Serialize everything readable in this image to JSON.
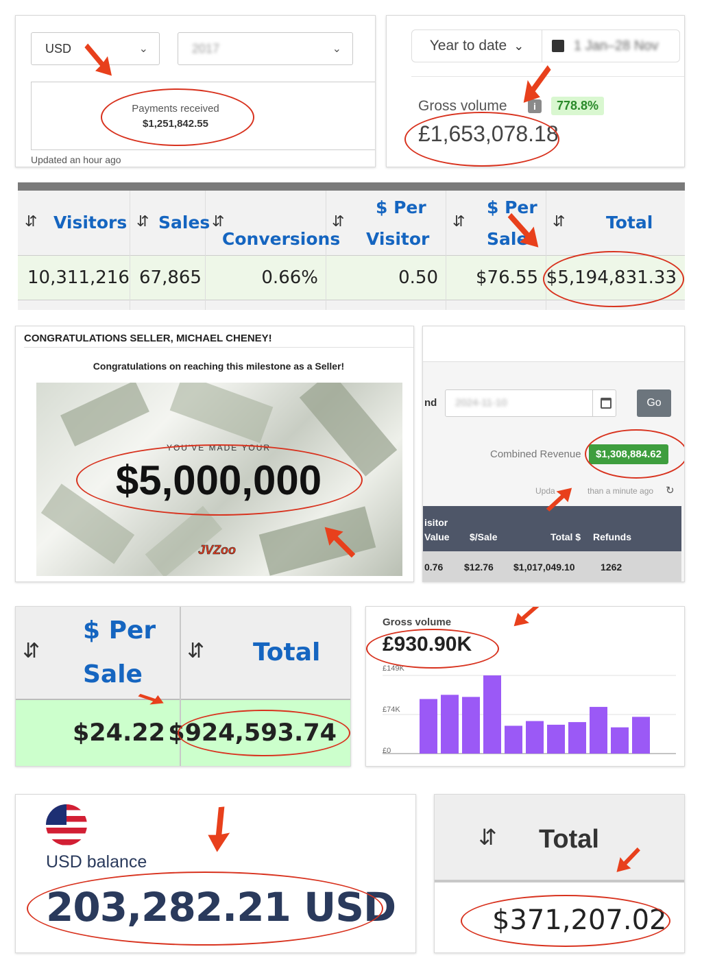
{
  "p1": {
    "currency": "USD",
    "year": "2017",
    "label": "Payments received",
    "amount": "$1,251,842.55",
    "updated": "Updated an hour ago"
  },
  "p2": {
    "period": "Year to date",
    "date_range": "1 Jan–28 Nov",
    "label": "Gross volume",
    "badge": "778.8%",
    "amount": "£1,653,078.18"
  },
  "p3": {
    "headers": [
      "Visitors",
      "Sales",
      "Conversions",
      "$ Per",
      "Visitor",
      "$ Per",
      "Sale",
      "Total"
    ],
    "row": [
      "10,311,216",
      "67,865",
      "0.66%",
      "0.50",
      "$76.55",
      "$5,194,831.33"
    ]
  },
  "p4": {
    "title": "CONGRATULATIONS SELLER, MICHAEL CHENEY!",
    "subtitle": "Congratulations on reaching this milestone as a Seller!",
    "made": "YOU'VE MADE YOUR",
    "amount": "$5,000,000",
    "logo": "JVZoo"
  },
  "p5": {
    "end_label": "nd",
    "date": "2024-11-10",
    "go": "Go",
    "combined_label": "Combined Revenue",
    "combined_value": "$1,308,884.62",
    "updated_a": "Upda",
    "updated_b": "than a minute ago",
    "headers": [
      "isitor",
      "Value",
      "$/Sale",
      "Total $",
      "Refunds"
    ],
    "row": [
      "0.76",
      "$12.76",
      "$1,017,049.10",
      "1262"
    ]
  },
  "p6": {
    "headers": [
      "$ Per",
      "Sale",
      "Total"
    ],
    "row": [
      "$24.22",
      "$924,593.74"
    ]
  },
  "p7": {
    "label": "Gross volume",
    "amount": "£930.90K",
    "chart_data": {
      "type": "bar",
      "values": [
        104,
        112,
        108,
        149,
        53,
        62,
        55,
        60,
        89,
        50,
        70
      ],
      "ylim": [
        0,
        149
      ],
      "ytick_labels": [
        "£149K",
        "£74K",
        "£0"
      ],
      "color": "#9b59f6"
    }
  },
  "p8": {
    "label": "USD balance",
    "amount": "203,282.21 USD"
  },
  "p9": {
    "header": "Total",
    "amount": "$371,207.02"
  },
  "colors": {
    "accent_red": "#e8401c",
    "oval_red": "#d8321e",
    "blue": "#1565c0",
    "green_row": "#eef7e8",
    "badge_green": "#d9f7d0"
  }
}
